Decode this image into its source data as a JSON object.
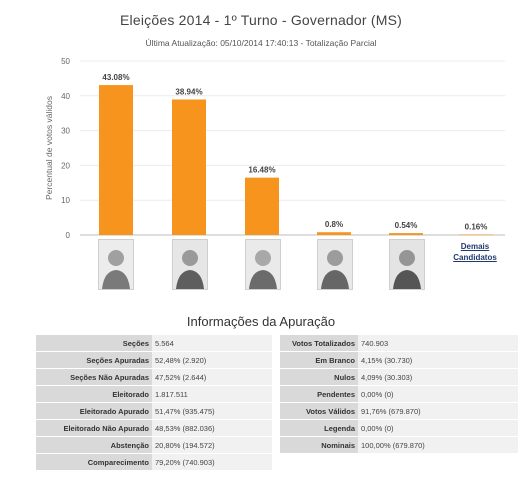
{
  "header": {
    "title": "Eleições 2014 - 1º Turno - Governador (MS)",
    "subtitle": "Última Atualização: 05/10/2014 17:40:13 - Totalização Parcial"
  },
  "chart_data": {
    "type": "bar",
    "title": "Eleições 2014 - 1º Turno - Governador (MS)",
    "xlabel": "",
    "ylabel": "Percentual de votos válidos",
    "ylim": [
      0,
      50
    ],
    "yticks": [
      0,
      10,
      20,
      30,
      40,
      50
    ],
    "categories": [
      "",
      "",
      "",
      "",
      "",
      "Demais Candidatos"
    ],
    "values": [
      43.08,
      38.94,
      16.48,
      0.8,
      0.54,
      0.16
    ],
    "data_labels": [
      "43.08%",
      "38.94%",
      "16.48%",
      "0.8%",
      "0.54%",
      "0.16%"
    ],
    "bar_color": "#f7941d",
    "grid": true,
    "legend": "none"
  },
  "candidates": {
    "others_label": "Demais Candidatos"
  },
  "info": {
    "title": "Informações da Apuração",
    "left": [
      {
        "label": "Seções",
        "value": "5.564"
      },
      {
        "label": "Seções Apuradas",
        "value": "52,48% (2.920)"
      },
      {
        "label": "Seções Não Apuradas",
        "value": "47,52% (2.644)"
      },
      {
        "label": "Eleitorado",
        "value": "1.817.511"
      },
      {
        "label": "Eleitorado Apurado",
        "value": "51,47% (935.475)"
      },
      {
        "label": "Eleitorado Não Apurado",
        "value": "48,53% (882.036)"
      },
      {
        "label": "Abstenção",
        "value": "20,80% (194.572)"
      },
      {
        "label": "Comparecimento",
        "value": "79,20% (740.903)"
      }
    ],
    "right": [
      {
        "label": "Votos Totalizados",
        "value": "740.903"
      },
      {
        "label": "Em Branco",
        "value": "4,15% (30.730)"
      },
      {
        "label": "Nulos",
        "value": "4,09% (30.303)"
      },
      {
        "label": "Pendentes",
        "value": "0,00% (0)"
      },
      {
        "label": "Votos Válidos",
        "value": "91,76% (679.870)"
      },
      {
        "label": "Legenda",
        "value": "0,00% (0)"
      },
      {
        "label": "Nominais",
        "value": "100,00% (679.870)"
      }
    ]
  }
}
